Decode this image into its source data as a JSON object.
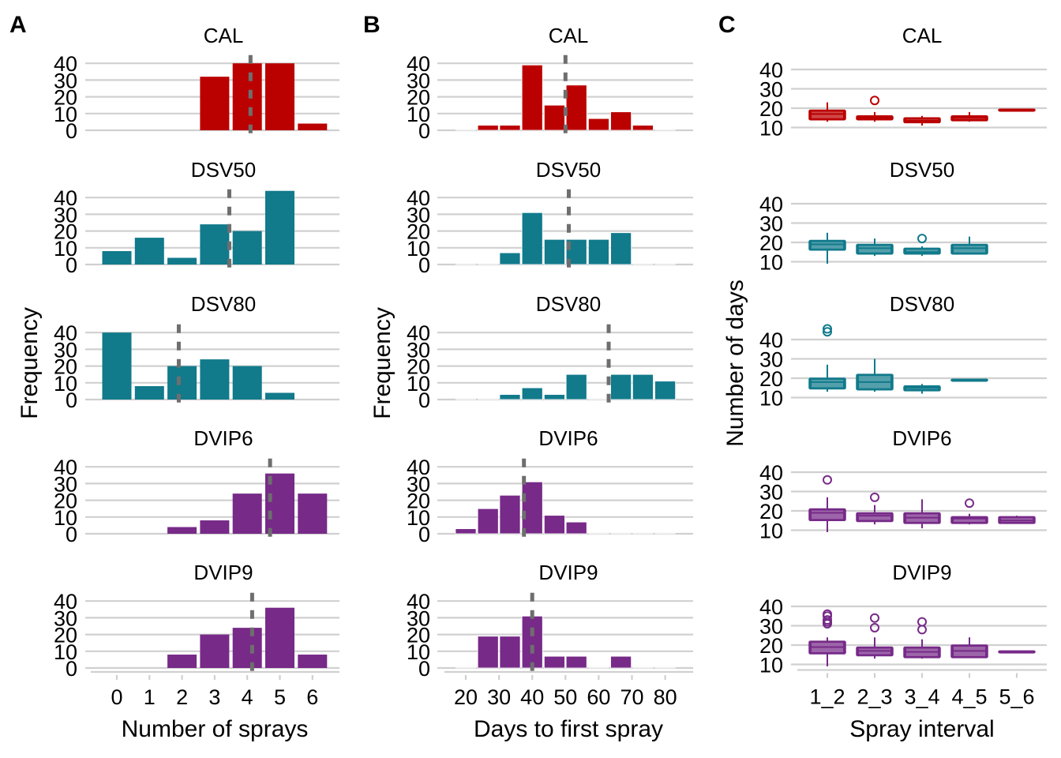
{
  "figure": {
    "panel_labels": [
      "A",
      "B",
      "C"
    ],
    "facet_titles": [
      "CAL",
      "DSV50",
      "DSV80",
      "DVIP6",
      "DVIP9"
    ],
    "colors": {
      "CAL": "#BB0000",
      "DSV50": "#117A8B",
      "DSV80": "#117A8B",
      "DVIP6": "#772A88",
      "DVIP9": "#772A88",
      "grid": "#D0D0D0",
      "dashed_line": "#6E6E6E"
    }
  },
  "chart_data": [
    {
      "panel": "A",
      "type": "bar",
      "xlabel": "Number of sprays",
      "ylabel": "Frequency",
      "categories": [
        0,
        1,
        2,
        3,
        4,
        5,
        6
      ],
      "x_ticks": [
        "0",
        "1",
        "2",
        "3",
        "4",
        "5",
        "6"
      ],
      "y_ticks": [
        "0",
        "10",
        "20",
        "30",
        "40"
      ],
      "ylim": [
        0,
        44
      ],
      "grid": "horizontal",
      "facets": [
        {
          "name": "CAL",
          "values": [
            0,
            0,
            0,
            32,
            40,
            40,
            4
          ],
          "mean_line": 4.1
        },
        {
          "name": "DSV50",
          "values": [
            8,
            16,
            4,
            24,
            20,
            44,
            0
          ],
          "mean_line": 3.45
        },
        {
          "name": "DSV80",
          "values": [
            40,
            8,
            20,
            24,
            20,
            4,
            0
          ],
          "mean_line": 1.9
        },
        {
          "name": "DVIP6",
          "values": [
            0,
            0,
            4,
            8,
            24,
            36,
            24
          ],
          "mean_line": 4.7
        },
        {
          "name": "DVIP9",
          "values": [
            0,
            0,
            8,
            20,
            24,
            36,
            8
          ],
          "mean_line": 4.15
        }
      ]
    },
    {
      "panel": "B",
      "type": "bar",
      "subtype": "histogram",
      "xlabel": "Days to first spray",
      "ylabel": "Frequency",
      "bin_centers": [
        20,
        26.7,
        33.3,
        40,
        46.7,
        53.3,
        60,
        66.7,
        73.3,
        80
      ],
      "bin_width": 6.67,
      "x_ticks": [
        "20",
        "30",
        "40",
        "50",
        "60",
        "70",
        "80"
      ],
      "y_ticks": [
        "0",
        "10",
        "20",
        "30",
        "40"
      ],
      "ylim": [
        0,
        42
      ],
      "grid": "horizontal",
      "facets": [
        {
          "name": "CAL",
          "values": [
            0,
            3,
            3,
            39,
            15,
            27,
            7,
            11,
            3,
            0
          ],
          "mean_line": 50
        },
        {
          "name": "DSV50",
          "values": [
            0,
            0,
            7,
            31,
            15,
            15,
            15,
            19,
            0,
            0
          ],
          "mean_line": 51
        },
        {
          "name": "DSV80",
          "values": [
            0,
            0,
            3,
            7,
            3,
            15,
            0,
            15,
            15,
            11
          ],
          "mean_line": 63
        },
        {
          "name": "DVIP6",
          "values": [
            3,
            15,
            23,
            31,
            11,
            7,
            0,
            0,
            0,
            0
          ],
          "mean_line": 37.5
        },
        {
          "name": "DVIP9",
          "values": [
            0,
            19,
            19,
            31,
            7,
            7,
            0,
            7,
            0,
            0
          ],
          "mean_line": 40
        }
      ]
    },
    {
      "panel": "C",
      "type": "box",
      "xlabel": "Spray interval",
      "ylabel": "Number of days",
      "categories": [
        "1_2",
        "2_3",
        "3_4",
        "4_5",
        "5_6"
      ],
      "y_ticks": [
        "10",
        "20",
        "30",
        "40"
      ],
      "ylim": [
        8,
        46
      ],
      "grid": "horizontal",
      "facets": [
        {
          "name": "CAL",
          "boxes": [
            {
              "cat": "1_2",
              "lo": 13,
              "q1": 14,
              "med": 17,
              "q3": 19,
              "hi": 23,
              "out": []
            },
            {
              "cat": "2_3",
              "lo": 13,
              "q1": 14,
              "med": 15,
              "q3": 16,
              "hi": 18,
              "out": [
                24
              ]
            },
            {
              "cat": "3_4",
              "lo": 11,
              "q1": 12.5,
              "med": 13.5,
              "q3": 15,
              "hi": 16,
              "out": []
            },
            {
              "cat": "4_5",
              "lo": 13,
              "q1": 13.5,
              "med": 15,
              "q3": 16,
              "hi": 18,
              "out": []
            },
            {
              "cat": "5_6",
              "lo": 19,
              "q1": 19,
              "med": 19,
              "q3": 19,
              "hi": 19,
              "out": []
            }
          ]
        },
        {
          "name": "DSV50",
          "boxes": [
            {
              "cat": "1_2",
              "lo": 9,
              "q1": 16,
              "med": 19,
              "q3": 21,
              "hi": 25,
              "out": []
            },
            {
              "cat": "2_3",
              "lo": 13,
              "q1": 14,
              "med": 17,
              "q3": 19,
              "hi": 22,
              "out": []
            },
            {
              "cat": "3_4",
              "lo": 13,
              "q1": 14,
              "med": 15,
              "q3": 17,
              "hi": 18,
              "out": [
                22
              ]
            },
            {
              "cat": "4_5",
              "lo": 14,
              "q1": 14,
              "med": 17,
              "q3": 19,
              "hi": 23,
              "out": []
            }
          ]
        },
        {
          "name": "DSV80",
          "boxes": [
            {
              "cat": "1_2",
              "lo": 13,
              "q1": 14.5,
              "med": 18,
              "q3": 20,
              "hi": 27,
              "out": [
                44,
                45.5
              ]
            },
            {
              "cat": "2_3",
              "lo": 13,
              "q1": 14,
              "med": 18,
              "q3": 22,
              "hi": 30,
              "out": []
            },
            {
              "cat": "3_4",
              "lo": 12,
              "q1": 13.5,
              "med": 15,
              "q3": 16,
              "hi": 17,
              "out": []
            },
            {
              "cat": "4_5",
              "lo": 19,
              "q1": 19,
              "med": 19,
              "q3": 19,
              "hi": 19,
              "out": []
            }
          ]
        },
        {
          "name": "DVIP6",
          "boxes": [
            {
              "cat": "1_2",
              "lo": 9,
              "q1": 15,
              "med": 19,
              "q3": 21,
              "hi": 27,
              "out": [
                36
              ]
            },
            {
              "cat": "2_3",
              "lo": 13,
              "q1": 14.5,
              "med": 17.5,
              "q3": 19,
              "hi": 23,
              "out": [
                27
              ]
            },
            {
              "cat": "3_4",
              "lo": 11,
              "q1": 13.5,
              "med": 16.5,
              "q3": 19,
              "hi": 26,
              "out": []
            },
            {
              "cat": "4_5",
              "lo": 13,
              "q1": 13.5,
              "med": 16,
              "q3": 17,
              "hi": 18.5,
              "out": [
                24
              ]
            },
            {
              "cat": "5_6",
              "lo": 13.5,
              "q1": 13.5,
              "med": 15,
              "q3": 17,
              "hi": 17.5,
              "out": []
            }
          ]
        },
        {
          "name": "DVIP9",
          "boxes": [
            {
              "cat": "1_2",
              "lo": 9,
              "q1": 15.5,
              "med": 19,
              "q3": 22,
              "hi": 24,
              "out": [
                31,
                32,
                33,
                35,
                36
              ]
            },
            {
              "cat": "2_3",
              "lo": 13,
              "q1": 14.5,
              "med": 17,
              "q3": 19,
              "hi": 24,
              "out": [
                29,
                34
              ]
            },
            {
              "cat": "3_4",
              "lo": 13,
              "q1": 13.5,
              "med": 16.5,
              "q3": 19,
              "hi": 23,
              "out": [
                28,
                32
              ]
            },
            {
              "cat": "4_5",
              "lo": 13.5,
              "q1": 13.5,
              "med": 17,
              "q3": 20,
              "hi": 24,
              "out": []
            },
            {
              "cat": "5_6",
              "lo": 16.5,
              "q1": 16.5,
              "med": 16.5,
              "q3": 16.5,
              "hi": 16.5,
              "out": []
            }
          ]
        }
      ]
    }
  ]
}
